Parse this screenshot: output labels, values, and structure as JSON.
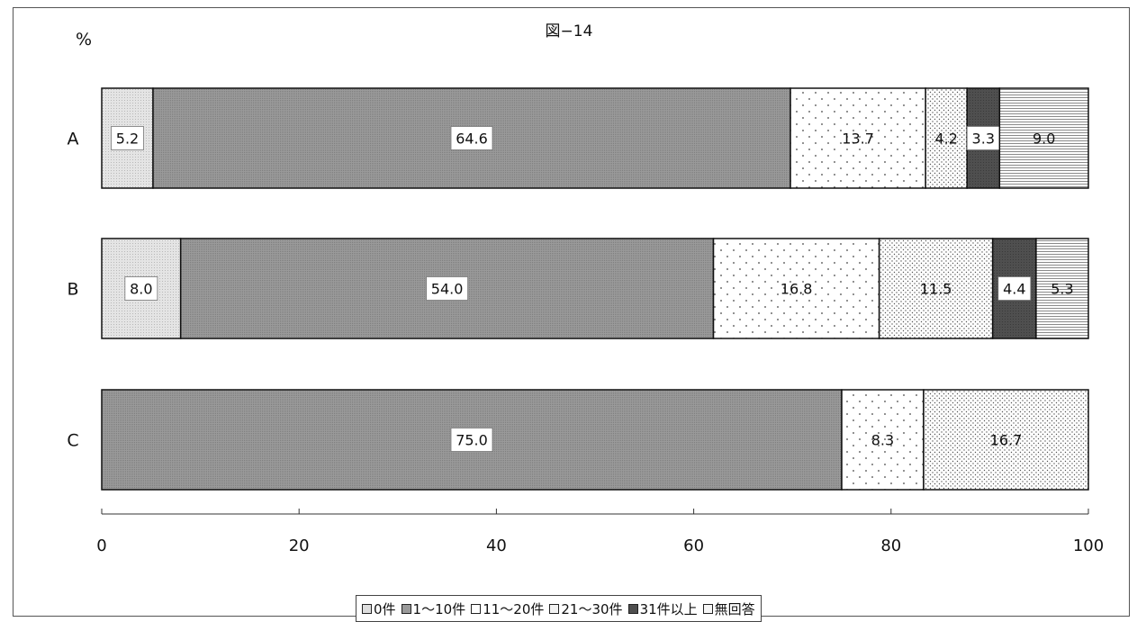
{
  "chart_data": {
    "type": "bar",
    "orientation": "horizontal",
    "stacked": true,
    "title": "図−14",
    "unit_label": "%",
    "categories": [
      "A",
      "B",
      "C"
    ],
    "series": [
      {
        "name": "0件",
        "values": [
          5.2,
          8.0,
          null
        ]
      },
      {
        "name": "1〜10件",
        "values": [
          64.6,
          54.0,
          75.0
        ]
      },
      {
        "name": "11〜20件",
        "values": [
          13.7,
          16.8,
          8.3
        ]
      },
      {
        "name": "21〜30件",
        "values": [
          4.2,
          11.5,
          16.7
        ]
      },
      {
        "name": "31件以上",
        "values": [
          3.3,
          4.4,
          null
        ]
      },
      {
        "name": "無回答",
        "values": [
          9.0,
          5.3,
          null
        ]
      }
    ],
    "data_labels": [
      [
        "5.2",
        "64.6",
        "13.7",
        "4.2",
        "3.3",
        "9.0"
      ],
      [
        "8.0",
        "54.0",
        "16.8",
        "11.5",
        "4.4",
        "5.3"
      ],
      [
        null,
        "75.0",
        "8.3",
        "16.7",
        null,
        null
      ]
    ],
    "xlim": [
      0,
      100
    ],
    "x_ticks": [
      0,
      20,
      40,
      60,
      80,
      100
    ],
    "x_tick_labels": [
      "0",
      "20",
      "40",
      "60",
      "80",
      "100"
    ],
    "grid": false,
    "legend_position": "bottom"
  }
}
